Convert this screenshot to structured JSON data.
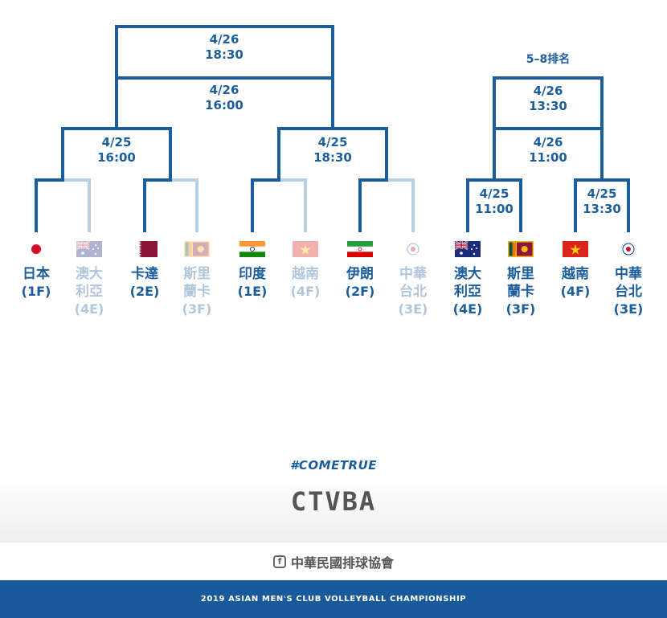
{
  "rank_title": "5–8排名",
  "matches": [
    {
      "date": "4/26",
      "time": "18:30"
    },
    {
      "date": "4/26",
      "time": "16:00"
    },
    {
      "date": "4/25",
      "time": "16:00"
    },
    {
      "date": "4/25",
      "time": "18:30"
    },
    {
      "date": "4/26",
      "time": "13:30"
    },
    {
      "date": "4/26",
      "time": "11:00"
    },
    {
      "date": "4/25",
      "time": "11:00"
    },
    {
      "date": "4/25",
      "time": "13:30"
    }
  ],
  "teams": [
    {
      "name": "日本",
      "seed": "(1F)",
      "flag": "japan-flag"
    },
    {
      "name": "澳大利亞",
      "seed": "(4E)",
      "flag": "australia-flag"
    },
    {
      "name": "卡達",
      "seed": "(2E)",
      "flag": "qatar-flag"
    },
    {
      "name": "斯里蘭卡",
      "seed": "(3F)",
      "flag": "sri-lanka-flag"
    },
    {
      "name": "印度",
      "seed": "(1E)",
      "flag": "india-flag"
    },
    {
      "name": "越南",
      "seed": "(4F)",
      "flag": "vietnam-flag"
    },
    {
      "name": "伊朗",
      "seed": "(2F)",
      "flag": "iran-flag"
    },
    {
      "name": "中華台北",
      "seed": "(3E)",
      "flag": "chinese-taipei-flag"
    },
    {
      "name": "澳大利亞",
      "seed": "(4E)",
      "flag": "australia-flag"
    },
    {
      "name": "斯里蘭卡",
      "seed": "(3F)",
      "flag": "sri-lanka-flag"
    },
    {
      "name": "越南",
      "seed": "(4F)",
      "flag": "vietnam-flag"
    },
    {
      "name": "中華台北",
      "seed": "(3E)",
      "flag": "chinese-taipei-flag"
    }
  ],
  "hashtag": "#COMETRUE",
  "brand": "CTVBA",
  "facebook_icon": "facebook-icon",
  "org_name": "中華民國排球協會",
  "footer_text": "2019 ASIAN MEN'S CLUB VOLLEYBALL CHAMPIONSHIP",
  "colors": {
    "primary": "#1c5d9c",
    "faded": "#b9cfe3",
    "footer": "#1a5a9a"
  }
}
